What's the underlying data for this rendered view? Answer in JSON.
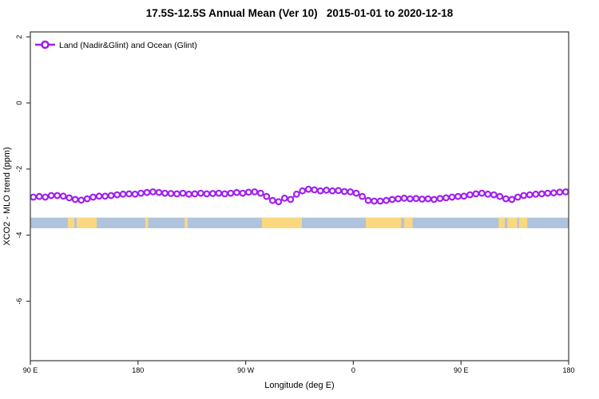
{
  "title": "17.5S-12.5S Annual Mean (Ver 10)   2015-01-01 to 2020-12-18",
  "chart_data": {
    "type": "line",
    "title": "17.5S-12.5S Annual Mean (Ver 10)   2015-01-01 to 2020-12-18",
    "xlabel": "Longitude (deg E)",
    "ylabel": "XCO2 - MLO trend (ppm)",
    "grid": false,
    "xlim": [
      90,
      540
    ],
    "ylim": [
      -7.8,
      2.15
    ],
    "x_ticks": [
      {
        "pos": 90,
        "label": "90 E"
      },
      {
        "pos": 180,
        "label": "180"
      },
      {
        "pos": 270,
        "label": "90 W"
      },
      {
        "pos": 360,
        "label": "0"
      },
      {
        "pos": 450,
        "label": "90 E"
      },
      {
        "pos": 540,
        "label": "180"
      }
    ],
    "y_ticks": [
      {
        "pos": 2,
        "label": "2"
      },
      {
        "pos": 0,
        "label": "0"
      },
      {
        "pos": -2,
        "label": "-2"
      },
      {
        "pos": -4,
        "label": "-4"
      },
      {
        "pos": -6,
        "label": "-6"
      }
    ],
    "legend": {
      "label": "Land (Nadir&Glint) and Ocean (Glint)",
      "position": "top-left",
      "marker": "open-circle-on-line"
    },
    "series": [
      {
        "name": "Land (Nadir&Glint) and Ocean (Glint)",
        "color": "#A020F0",
        "marker": "open-circle",
        "x": [
          92.5,
          97.5,
          102.5,
          107.5,
          112.5,
          117.5,
          122.5,
          127.5,
          132.5,
          137.5,
          142.5,
          147.5,
          152.5,
          157.5,
          162.5,
          167.5,
          172.5,
          177.5,
          182.5,
          187.5,
          192.5,
          197.5,
          202.5,
          207.5,
          212.5,
          217.5,
          222.5,
          227.5,
          232.5,
          237.5,
          242.5,
          247.5,
          252.5,
          257.5,
          262.5,
          267.5,
          272.5,
          277.5,
          282.5,
          287.5,
          292.5,
          297.5,
          302.5,
          307.5,
          312.5,
          317.5,
          322.5,
          327.5,
          332.5,
          337.5,
          342.5,
          347.5,
          352.5,
          357.5,
          362.5,
          367.5,
          372.5,
          377.5,
          382.5,
          387.5,
          392.5,
          397.5,
          402.5,
          407.5,
          412.5,
          417.5,
          422.5,
          427.5,
          432.5,
          437.5,
          442.5,
          447.5,
          452.5,
          457.5,
          462.5,
          467.5,
          472.5,
          477.5,
          482.5,
          487.5,
          492.5,
          497.5,
          502.5,
          507.5,
          512.5,
          517.5,
          522.5,
          527.5,
          532.5,
          537.5
        ],
        "y": [
          -2.85,
          -2.83,
          -2.85,
          -2.8,
          -2.8,
          -2.82,
          -2.87,
          -2.92,
          -2.94,
          -2.9,
          -2.85,
          -2.82,
          -2.82,
          -2.8,
          -2.78,
          -2.76,
          -2.75,
          -2.76,
          -2.73,
          -2.71,
          -2.69,
          -2.71,
          -2.73,
          -2.74,
          -2.75,
          -2.73,
          -2.76,
          -2.75,
          -2.73,
          -2.75,
          -2.74,
          -2.73,
          -2.75,
          -2.73,
          -2.71,
          -2.73,
          -2.7,
          -2.69,
          -2.73,
          -2.83,
          -2.95,
          -2.99,
          -2.88,
          -2.92,
          -2.76,
          -2.66,
          -2.61,
          -2.63,
          -2.66,
          -2.64,
          -2.66,
          -2.65,
          -2.68,
          -2.69,
          -2.73,
          -2.83,
          -2.95,
          -2.97,
          -2.97,
          -2.95,
          -2.92,
          -2.9,
          -2.88,
          -2.9,
          -2.89,
          -2.91,
          -2.9,
          -2.92,
          -2.89,
          -2.87,
          -2.85,
          -2.83,
          -2.82,
          -2.78,
          -2.75,
          -2.73,
          -2.76,
          -2.78,
          -2.83,
          -2.9,
          -2.92,
          -2.85,
          -2.8,
          -2.78,
          -2.76,
          -2.75,
          -2.73,
          -2.72,
          -2.7,
          -2.69
        ]
      }
    ],
    "surface_band": {
      "description": "land-ocean strip",
      "value_top": -3.47,
      "value_bottom": -3.79,
      "ocean_color": "#AFC3DE",
      "land_color": "#FAD880",
      "ocean_extent": [
        90,
        540
      ],
      "land_segments": [
        [
          121.4,
          126.7
        ],
        [
          128.7,
          145.4
        ],
        [
          186.0,
          188.5
        ],
        [
          219.0,
          221.5
        ],
        [
          283.5,
          317.0
        ],
        [
          370.5,
          400.0
        ],
        [
          402.5,
          409.5
        ],
        [
          481.4,
          486.7
        ],
        [
          488.7,
          497.0
        ],
        [
          498.5,
          505.4
        ]
      ]
    }
  },
  "colors": {
    "series_purple": "#A020F0",
    "ocean_blue": "#AFC3DE",
    "land_yellow": "#FAD880",
    "axis": "#3a3a3a",
    "text": "#000000",
    "background": "#ffffff"
  }
}
